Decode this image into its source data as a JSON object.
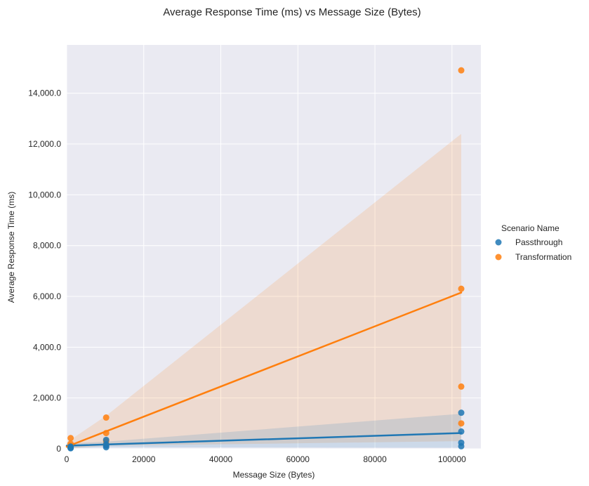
{
  "chart_data": {
    "type": "scatter",
    "title": "Average Response Time (ms) vs Message Size (Bytes)",
    "xlabel": "Message Size (Bytes)",
    "ylabel": "Average Response Time (ms)",
    "xlim": [
      0,
      107500
    ],
    "ylim": [
      0,
      15900
    ],
    "xticks": [
      0,
      20000,
      40000,
      60000,
      80000,
      100000
    ],
    "xtick_labels": [
      "0",
      "20000",
      "40000",
      "60000",
      "80000",
      "100000"
    ],
    "yticks": [
      0,
      2000,
      4000,
      6000,
      8000,
      10000,
      12000,
      14000
    ],
    "ytick_labels": [
      "0",
      "2,000.0",
      "4,000.0",
      "6,000.0",
      "8,000.0",
      "10,000.0",
      "12,000.0",
      "14,000.0"
    ],
    "grid": true,
    "legend": {
      "title": "Scenario Name",
      "placement": "right"
    },
    "series": [
      {
        "name": "Passthrough",
        "color": "#1f77b4",
        "points": [
          [
            1024,
            20
          ],
          [
            1024,
            40
          ],
          [
            1024,
            60
          ],
          [
            1024,
            90
          ],
          [
            10240,
            60
          ],
          [
            10240,
            120
          ],
          [
            10240,
            180
          ],
          [
            10240,
            350
          ],
          [
            102400,
            100
          ],
          [
            102400,
            240
          ],
          [
            102400,
            680
          ],
          [
            102400,
            1420
          ]
        ],
        "fit": {
          "x": [
            0,
            102400
          ],
          "y": [
            120,
            620
          ]
        },
        "ci_upper": {
          "x": [
            0,
            10240,
            102400
          ],
          "y": [
            210,
            280,
            1380
          ]
        },
        "ci_lower": {
          "x": [
            0,
            10240,
            102400
          ],
          "y": [
            30,
            60,
            40
          ]
        }
      },
      {
        "name": "Transformation",
        "color": "#ff7f0e",
        "points": [
          [
            1024,
            60
          ],
          [
            1024,
            120
          ],
          [
            1024,
            200
          ],
          [
            1024,
            420
          ],
          [
            10240,
            150
          ],
          [
            10240,
            300
          ],
          [
            10240,
            620
          ],
          [
            10240,
            1230
          ],
          [
            102400,
            1000
          ],
          [
            102400,
            2450
          ],
          [
            102400,
            6300
          ],
          [
            102400,
            14900
          ]
        ],
        "fit": {
          "x": [
            0,
            102400
          ],
          "y": [
            80,
            6150
          ]
        },
        "ci_upper": {
          "x": [
            0,
            10240,
            102400
          ],
          "y": [
            250,
            1300,
            12400
          ]
        },
        "ci_lower": {
          "x": [
            0,
            10240,
            102400
          ],
          "y": [
            0,
            120,
            300
          ]
        }
      }
    ]
  }
}
